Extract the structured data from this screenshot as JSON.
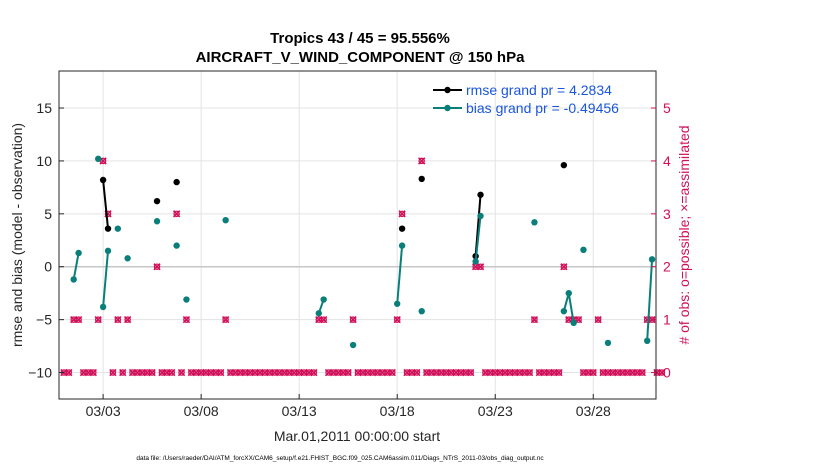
{
  "chart_data": {
    "type": "line",
    "title": "Tropics 43 / 45 = 95.556%",
    "subtitle": "AIRCRAFT_V_WIND_COMPONENT @ 150 hPa",
    "xlabel": "Mar.01,2011 00:00:00 start",
    "ylabel": "rmse and bias (model - observation)",
    "y2label": "# of obs: o=possible; ×=assimilated",
    "footnote": "data file: /Users/raeder/DAI/ATM_forcXX/CAM6_setup/f.e21.FHIST_BGC.f09_025.CAM6assim.011/Diags_NTrS_2011-03/obs_diag_output.nc",
    "xlim": [
      0.75,
      31.2
    ],
    "ylim": [
      -12.5,
      18.5
    ],
    "y2lim": [
      -0.5,
      5.7
    ],
    "x_ticks": [
      3,
      8,
      13,
      18,
      23,
      28
    ],
    "x_tick_labels": [
      "03/03",
      "03/08",
      "03/13",
      "03/18",
      "03/23",
      "03/28"
    ],
    "y_ticks": [
      -10,
      -5,
      0,
      5,
      10,
      15
    ],
    "y_tick_labels": [
      "−10",
      "−5",
      "0",
      "5",
      "10",
      "15"
    ],
    "y2_ticks": [
      0,
      1,
      2,
      3,
      4,
      5
    ],
    "y2_tick_labels": [
      "0",
      "1",
      "2",
      "3",
      "4",
      "5"
    ],
    "grid": true,
    "legend_position": "top-right",
    "colors": {
      "rmse": "#000000",
      "bias": "#0a7f7a",
      "obs": "#d1105a",
      "zero_line": "#c7c7c7",
      "grid": "#e3e3e3"
    },
    "series": [
      {
        "name": "rmse",
        "legend_label": "rmse grand pr = 4.2834",
        "segments": [
          [
            [
              3.0,
              8.2
            ],
            [
              3.25,
              3.6
            ]
          ],
          [
            [
              5.75,
              6.2
            ]
          ],
          [
            [
              6.75,
              8.0
            ]
          ],
          [
            [
              18.25,
              3.6
            ]
          ],
          [
            [
              19.25,
              8.3
            ]
          ],
          [
            [
              22.0,
              1.0
            ],
            [
              22.25,
              6.8
            ]
          ],
          [
            [
              26.5,
              9.6
            ]
          ]
        ]
      },
      {
        "name": "bias",
        "legend_label": "bias grand pr = -0.49456",
        "segments": [
          [
            [
              1.5,
              -1.2
            ],
            [
              1.75,
              1.3
            ]
          ],
          [
            [
              2.75,
              10.2
            ]
          ],
          [
            [
              3.0,
              -3.8
            ],
            [
              3.25,
              1.5
            ]
          ],
          [
            [
              3.75,
              3.6
            ]
          ],
          [
            [
              4.25,
              0.8
            ]
          ],
          [
            [
              5.75,
              4.3
            ]
          ],
          [
            [
              6.75,
              2.0
            ]
          ],
          [
            [
              7.25,
              -3.1
            ]
          ],
          [
            [
              9.25,
              4.4
            ]
          ],
          [
            [
              14.0,
              -4.4
            ],
            [
              14.25,
              -3.1
            ]
          ],
          [
            [
              15.75,
              -7.4
            ]
          ],
          [
            [
              18.0,
              -3.5
            ],
            [
              18.25,
              2.0
            ]
          ],
          [
            [
              19.25,
              -4.2
            ]
          ],
          [
            [
              22.0,
              0.5
            ],
            [
              22.25,
              4.8
            ]
          ],
          [
            [
              25.0,
              4.2
            ]
          ],
          [
            [
              26.5,
              -4.2
            ],
            [
              26.75,
              -2.5
            ],
            [
              27.0,
              -5.3
            ]
          ],
          [
            [
              27.5,
              1.6
            ]
          ],
          [
            [
              28.75,
              -7.2
            ]
          ],
          [
            [
              30.75,
              -7.0
            ],
            [
              31.0,
              0.7
            ]
          ]
        ]
      }
    ],
    "obs_possible": [
      [
        1.0,
        0
      ],
      [
        1.25,
        0
      ],
      [
        1.5,
        1
      ],
      [
        1.75,
        1
      ],
      [
        2.0,
        0
      ],
      [
        2.25,
        0
      ],
      [
        2.5,
        0
      ],
      [
        2.75,
        1
      ],
      [
        3.0,
        4
      ],
      [
        3.25,
        3
      ],
      [
        3.5,
        0
      ],
      [
        3.75,
        1
      ],
      [
        4.0,
        0
      ],
      [
        4.25,
        1
      ],
      [
        4.5,
        0
      ],
      [
        4.75,
        0
      ],
      [
        5.0,
        0
      ],
      [
        5.25,
        0
      ],
      [
        5.5,
        0
      ],
      [
        5.75,
        2
      ],
      [
        6.0,
        0
      ],
      [
        6.25,
        0
      ],
      [
        6.5,
        0
      ],
      [
        6.75,
        3
      ],
      [
        7.0,
        0
      ],
      [
        7.25,
        1
      ],
      [
        7.5,
        0
      ],
      [
        7.75,
        0
      ],
      [
        8.0,
        0
      ],
      [
        8.25,
        0
      ],
      [
        8.5,
        0
      ],
      [
        8.75,
        0
      ],
      [
        9.0,
        0
      ],
      [
        9.25,
        1
      ],
      [
        9.5,
        0
      ],
      [
        9.75,
        0
      ],
      [
        10.0,
        0
      ],
      [
        10.25,
        0
      ],
      [
        10.5,
        0
      ],
      [
        10.75,
        0
      ],
      [
        11.0,
        0
      ],
      [
        11.25,
        0
      ],
      [
        11.5,
        0
      ],
      [
        11.75,
        0
      ],
      [
        12.0,
        0
      ],
      [
        12.25,
        0
      ],
      [
        12.5,
        0
      ],
      [
        12.75,
        0
      ],
      [
        13.0,
        0
      ],
      [
        13.25,
        0
      ],
      [
        13.5,
        0
      ],
      [
        13.75,
        0
      ],
      [
        14.0,
        1
      ],
      [
        14.25,
        1
      ],
      [
        14.5,
        0
      ],
      [
        14.75,
        0
      ],
      [
        15.0,
        0
      ],
      [
        15.25,
        0
      ],
      [
        15.5,
        0
      ],
      [
        15.75,
        1
      ],
      [
        16.0,
        0
      ],
      [
        16.25,
        0
      ],
      [
        16.5,
        0
      ],
      [
        16.75,
        0
      ],
      [
        17.0,
        0
      ],
      [
        17.25,
        0
      ],
      [
        17.5,
        0
      ],
      [
        17.75,
        0
      ],
      [
        18.0,
        1
      ],
      [
        18.25,
        3
      ],
      [
        18.5,
        0
      ],
      [
        18.75,
        0
      ],
      [
        19.0,
        0
      ],
      [
        19.25,
        4
      ],
      [
        19.5,
        0
      ],
      [
        19.75,
        0
      ],
      [
        20.0,
        0
      ],
      [
        20.25,
        0
      ],
      [
        20.5,
        0
      ],
      [
        20.75,
        0
      ],
      [
        21.0,
        0
      ],
      [
        21.25,
        0
      ],
      [
        21.5,
        0
      ],
      [
        21.75,
        0
      ],
      [
        22.0,
        2
      ],
      [
        22.25,
        2
      ],
      [
        22.5,
        0
      ],
      [
        22.75,
        0
      ],
      [
        23.0,
        0
      ],
      [
        23.25,
        0
      ],
      [
        23.5,
        0
      ],
      [
        23.75,
        0
      ],
      [
        24.0,
        0
      ],
      [
        24.25,
        0
      ],
      [
        24.5,
        0
      ],
      [
        24.75,
        0
      ],
      [
        25.0,
        1
      ],
      [
        25.25,
        0
      ],
      [
        25.5,
        0
      ],
      [
        25.75,
        0
      ],
      [
        26.0,
        0
      ],
      [
        26.25,
        0
      ],
      [
        26.5,
        2
      ],
      [
        26.75,
        1
      ],
      [
        27.0,
        1
      ],
      [
        27.25,
        1
      ],
      [
        27.5,
        0
      ],
      [
        27.75,
        0
      ],
      [
        28.0,
        0
      ],
      [
        28.25,
        1
      ],
      [
        28.5,
        0
      ],
      [
        28.75,
        0
      ],
      [
        29.0,
        0
      ],
      [
        29.25,
        0
      ],
      [
        29.5,
        0
      ],
      [
        29.75,
        0
      ],
      [
        30.0,
        0
      ],
      [
        30.25,
        0
      ],
      [
        30.5,
        0
      ],
      [
        30.75,
        1
      ],
      [
        31.0,
        1
      ],
      [
        31.25,
        0
      ],
      [
        31.5,
        0
      ]
    ],
    "obs_assimilated": [
      [
        1.0,
        0
      ],
      [
        1.25,
        0
      ],
      [
        1.5,
        1
      ],
      [
        1.75,
        1
      ],
      [
        2.0,
        0
      ],
      [
        2.25,
        0
      ],
      [
        2.5,
        0
      ],
      [
        2.75,
        1
      ],
      [
        3.0,
        4
      ],
      [
        3.25,
        3
      ],
      [
        3.5,
        0
      ],
      [
        3.75,
        1
      ],
      [
        4.0,
        0
      ],
      [
        4.25,
        1
      ],
      [
        4.5,
        0
      ],
      [
        4.75,
        0
      ],
      [
        5.0,
        0
      ],
      [
        5.25,
        0
      ],
      [
        5.5,
        0
      ],
      [
        5.75,
        2
      ],
      [
        6.0,
        0
      ],
      [
        6.25,
        0
      ],
      [
        6.5,
        0
      ],
      [
        6.75,
        3
      ],
      [
        7.0,
        0
      ],
      [
        7.25,
        1
      ],
      [
        7.5,
        0
      ],
      [
        7.75,
        0
      ],
      [
        8.0,
        0
      ],
      [
        8.25,
        0
      ],
      [
        8.5,
        0
      ],
      [
        8.75,
        0
      ],
      [
        9.0,
        0
      ],
      [
        9.25,
        1
      ],
      [
        9.5,
        0
      ],
      [
        9.75,
        0
      ],
      [
        10.0,
        0
      ],
      [
        10.25,
        0
      ],
      [
        10.5,
        0
      ],
      [
        10.75,
        0
      ],
      [
        11.0,
        0
      ],
      [
        11.25,
        0
      ],
      [
        11.5,
        0
      ],
      [
        11.75,
        0
      ],
      [
        12.0,
        0
      ],
      [
        12.25,
        0
      ],
      [
        12.5,
        0
      ],
      [
        12.75,
        0
      ],
      [
        13.0,
        0
      ],
      [
        13.25,
        0
      ],
      [
        13.5,
        0
      ],
      [
        13.75,
        0
      ],
      [
        14.0,
        1
      ],
      [
        14.25,
        1
      ],
      [
        14.5,
        0
      ],
      [
        14.75,
        0
      ],
      [
        15.0,
        0
      ],
      [
        15.25,
        0
      ],
      [
        15.5,
        0
      ],
      [
        15.75,
        1
      ],
      [
        16.0,
        0
      ],
      [
        16.25,
        0
      ],
      [
        16.5,
        0
      ],
      [
        16.75,
        0
      ],
      [
        17.0,
        0
      ],
      [
        17.25,
        0
      ],
      [
        17.5,
        0
      ],
      [
        17.75,
        0
      ],
      [
        18.0,
        1
      ],
      [
        18.25,
        3
      ],
      [
        18.5,
        0
      ],
      [
        18.75,
        0
      ],
      [
        19.0,
        0
      ],
      [
        19.25,
        4
      ],
      [
        19.5,
        0
      ],
      [
        19.75,
        0
      ],
      [
        20.0,
        0
      ],
      [
        20.25,
        0
      ],
      [
        20.5,
        0
      ],
      [
        20.75,
        0
      ],
      [
        21.0,
        0
      ],
      [
        21.25,
        0
      ],
      [
        21.5,
        0
      ],
      [
        21.75,
        0
      ],
      [
        22.0,
        2
      ],
      [
        22.25,
        2
      ],
      [
        22.5,
        0
      ],
      [
        22.75,
        0
      ],
      [
        23.0,
        0
      ],
      [
        23.25,
        0
      ],
      [
        23.5,
        0
      ],
      [
        23.75,
        0
      ],
      [
        24.0,
        0
      ],
      [
        24.25,
        0
      ],
      [
        24.5,
        0
      ],
      [
        24.75,
        0
      ],
      [
        25.0,
        1
      ],
      [
        25.25,
        0
      ],
      [
        25.5,
        0
      ],
      [
        25.75,
        0
      ],
      [
        26.0,
        0
      ],
      [
        26.25,
        0
      ],
      [
        26.5,
        2
      ],
      [
        26.75,
        1
      ],
      [
        27.0,
        1
      ],
      [
        27.25,
        1
      ],
      [
        27.5,
        0
      ],
      [
        27.75,
        0
      ],
      [
        28.0,
        0
      ],
      [
        28.25,
        1
      ],
      [
        28.5,
        0
      ],
      [
        28.75,
        0
      ],
      [
        29.0,
        0
      ],
      [
        29.25,
        0
      ],
      [
        29.5,
        0
      ],
      [
        29.75,
        0
      ],
      [
        30.0,
        0
      ],
      [
        30.25,
        0
      ],
      [
        30.5,
        0
      ],
      [
        30.75,
        1
      ],
      [
        31.0,
        1
      ],
      [
        31.25,
        0
      ],
      [
        31.5,
        0
      ]
    ]
  }
}
